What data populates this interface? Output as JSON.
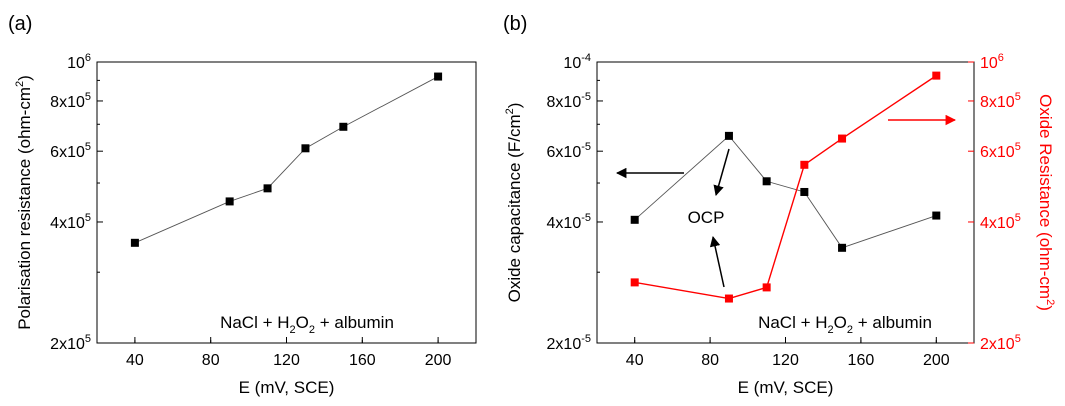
{
  "figure": {
    "panels": [
      "(a)",
      "(b)"
    ]
  },
  "chart_data": [
    {
      "type": "line",
      "panel_label": "(a)",
      "xlabel": "E (mV, SCE)",
      "ylabel": "Polarisation resistance (ohm-cm²)",
      "ylabel_parts": {
        "main": "Polarisation resistance (ohm-cm",
        "sup": "2",
        "tail": ")"
      },
      "xlim": [
        20,
        220
      ],
      "ylim": [
        200000,
        1000000
      ],
      "yscale": "log",
      "x_ticks": [
        40,
        80,
        120,
        160,
        200
      ],
      "y_ticks": [
        {
          "value": 200000,
          "mant": "2x10",
          "exp": "5"
        },
        {
          "value": 400000,
          "mant": "4x10",
          "exp": "5"
        },
        {
          "value": 600000,
          "mant": "6x10",
          "exp": "5"
        },
        {
          "value": 800000,
          "mant": "8x10",
          "exp": "5"
        },
        {
          "value": 1000000,
          "mant": "10",
          "exp": "6"
        }
      ],
      "annotation": "NaCl + H₂O₂ + albumin",
      "annotation_parts": [
        "NaCl + H",
        "2",
        "O",
        "2",
        " + albumin"
      ],
      "series": [
        {
          "color": "#000000",
          "x": [
            40,
            90,
            110,
            130,
            150,
            200
          ],
          "y": [
            355000,
            450000,
            485000,
            610000,
            690000,
            920000
          ]
        }
      ]
    },
    {
      "type": "line",
      "panel_label": "(b)",
      "xlabel": "E (mV, SCE)",
      "ylabel": "Oxide capacitance (F/cm²)",
      "ylabel_parts": {
        "main": "Oxide capacitance  (F/cm",
        "sup": "2",
        "tail": ")"
      },
      "ylabel_right": "Oxide Resistance (ohm-cm²)",
      "ylabel_right_parts": {
        "main": "Oxide Resistance (ohm-cm",
        "sup": "2",
        "tail": ")"
      },
      "xlim": [
        20,
        220
      ],
      "ylim": [
        2e-05,
        0.0001
      ],
      "ylim_right": [
        200000,
        1000000
      ],
      "yscale": "log",
      "x_ticks": [
        40,
        80,
        120,
        160,
        200
      ],
      "y_ticks": [
        {
          "value": 2e-05,
          "mant": "2x10",
          "exp": "-5"
        },
        {
          "value": 4e-05,
          "mant": "4x10",
          "exp": "-5"
        },
        {
          "value": 6e-05,
          "mant": "6x10",
          "exp": "-5"
        },
        {
          "value": 8e-05,
          "mant": "8x10",
          "exp": "-5"
        },
        {
          "value": 0.0001,
          "mant": "10",
          "exp": "-4"
        }
      ],
      "y_ticks_right": [
        {
          "value": 200000,
          "mant": "2x10",
          "exp": "5"
        },
        {
          "value": 400000,
          "mant": "4x10",
          "exp": "5"
        },
        {
          "value": 600000,
          "mant": "6x10",
          "exp": "5"
        },
        {
          "value": 800000,
          "mant": "8x10",
          "exp": "5"
        },
        {
          "value": 1000000,
          "mant": "10",
          "exp": "6"
        }
      ],
      "annotation": "NaCl + H₂O₂ + albumin",
      "annotation_parts": [
        "NaCl + H",
        "2",
        "O",
        "2",
        " + albumin"
      ],
      "ocp_label": "OCP",
      "series": [
        {
          "axis": "left",
          "color": "#000000",
          "x": [
            40,
            90,
            110,
            130,
            150,
            200
          ],
          "y": [
            4.05e-05,
            6.55e-05,
            5.05e-05,
            4.75e-05,
            3.45e-05,
            4.15e-05
          ]
        },
        {
          "axis": "right",
          "color": "#ff0000",
          "x": [
            40,
            90,
            110,
            130,
            150,
            200
          ],
          "y": [
            283000,
            258000,
            275000,
            555000,
            645000,
            925000
          ]
        }
      ]
    }
  ]
}
